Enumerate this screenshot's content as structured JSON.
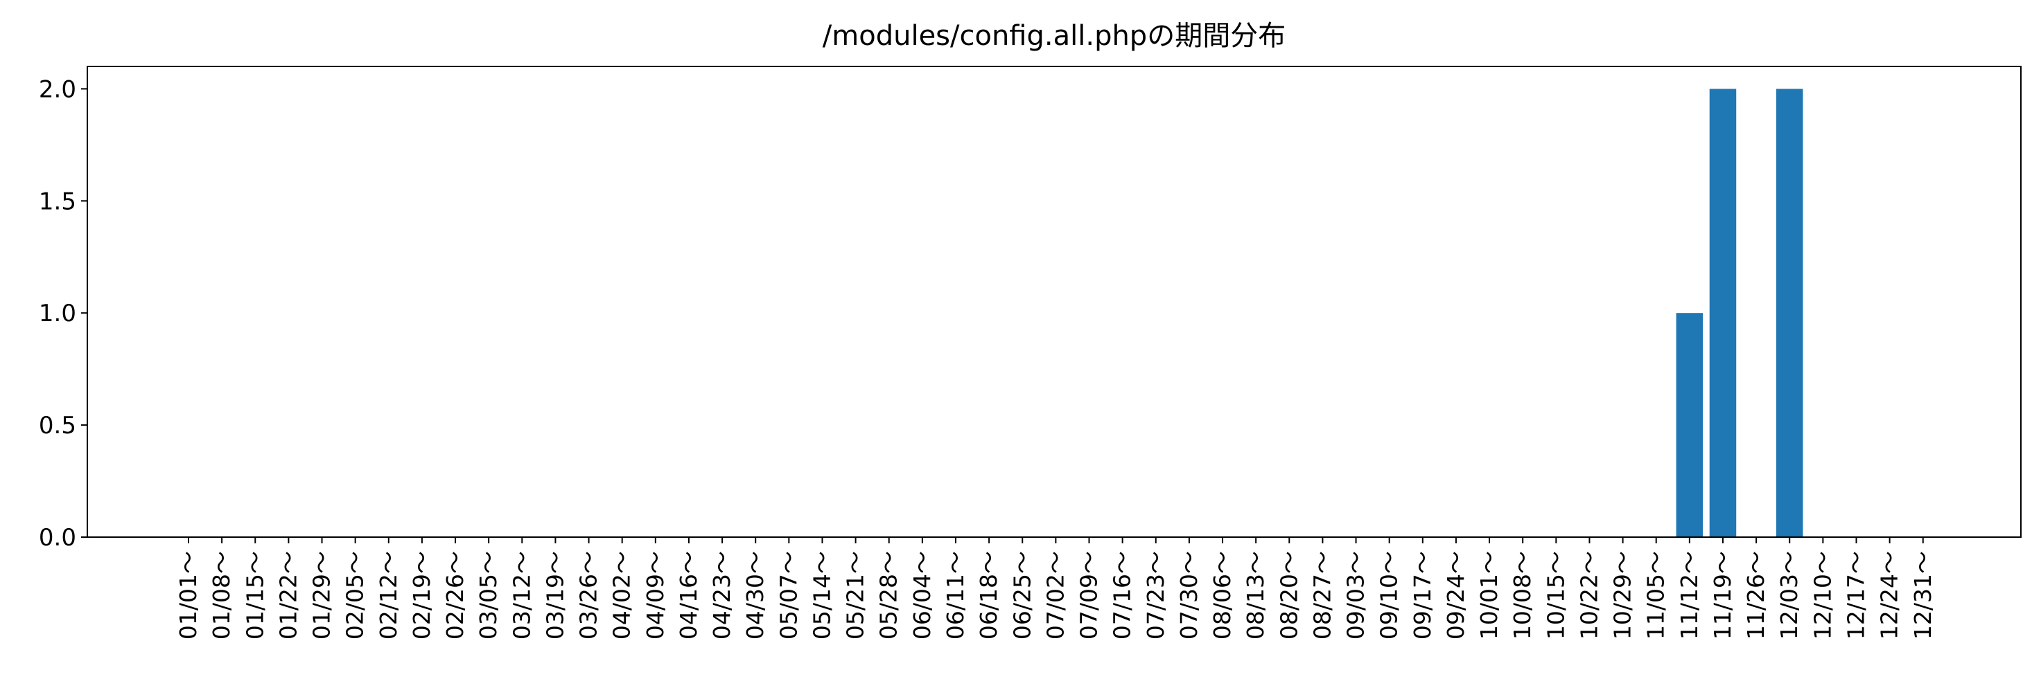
{
  "chart_data": {
    "type": "bar",
    "title": "/modules/config.all.phpの期間分布",
    "xlabel": "",
    "ylabel": "",
    "categories": [
      "01/01～",
      "01/08～",
      "01/15～",
      "01/22～",
      "01/29～",
      "02/05～",
      "02/12～",
      "02/19～",
      "02/26～",
      "03/05～",
      "03/12～",
      "03/19～",
      "03/26～",
      "04/02～",
      "04/09～",
      "04/16～",
      "04/23～",
      "04/30～",
      "05/07～",
      "05/14～",
      "05/21～",
      "05/28～",
      "06/04～",
      "06/11～",
      "06/18～",
      "06/25～",
      "07/02～",
      "07/09～",
      "07/16～",
      "07/23～",
      "07/30～",
      "08/06～",
      "08/13～",
      "08/20～",
      "08/27～",
      "09/03～",
      "09/10～",
      "09/17～",
      "09/24～",
      "10/01～",
      "10/08～",
      "10/15～",
      "10/22～",
      "10/29～",
      "11/05～",
      "11/12～",
      "11/19～",
      "11/26～",
      "12/03～",
      "12/10～",
      "12/17～",
      "12/24～",
      "12/31～"
    ],
    "values": [
      0,
      0,
      0,
      0,
      0,
      0,
      0,
      0,
      0,
      0,
      0,
      0,
      0,
      0,
      0,
      0,
      0,
      0,
      0,
      0,
      0,
      0,
      0,
      0,
      0,
      0,
      0,
      0,
      0,
      0,
      0,
      0,
      0,
      0,
      0,
      0,
      0,
      0,
      0,
      0,
      0,
      0,
      0,
      0,
      0,
      1,
      2,
      0,
      2,
      0,
      0,
      0,
      0
    ],
    "ylim": [
      0,
      2.1
    ],
    "yticks": [
      "0.0",
      "0.5",
      "1.0",
      "1.5",
      "2.0"
    ],
    "ytick_values": [
      0,
      0.5,
      1.0,
      1.5,
      2.0
    ],
    "bar_color": "#1f77b4",
    "grid": false,
    "legend": "none"
  }
}
